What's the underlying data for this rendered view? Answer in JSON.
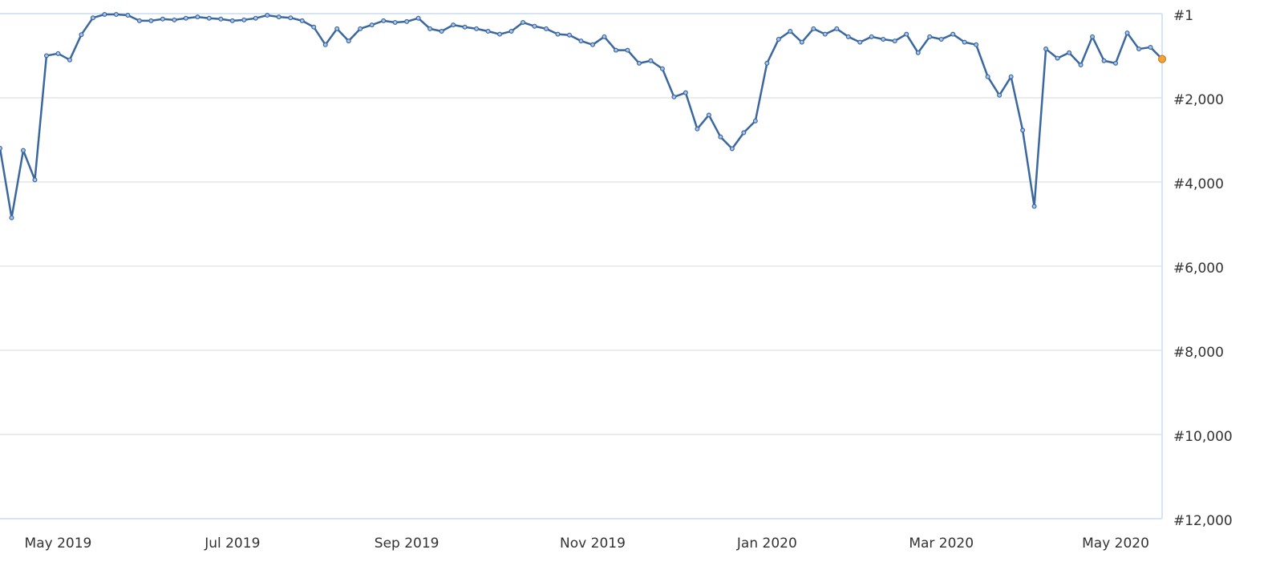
{
  "chart_data": {
    "type": "line",
    "categories": [
      null,
      null,
      null,
      null,
      null,
      "May 2019",
      null,
      null,
      null,
      null,
      null,
      null,
      null,
      null,
      null,
      null,
      null,
      null,
      null,
      null,
      "Jul 2019",
      null,
      null,
      null,
      null,
      null,
      null,
      null,
      null,
      null,
      null,
      null,
      null,
      null,
      null,
      "Sep 2019",
      null,
      null,
      null,
      null,
      null,
      null,
      null,
      null,
      null,
      null,
      null,
      null,
      null,
      null,
      null,
      "Nov 2019",
      null,
      null,
      null,
      null,
      null,
      null,
      null,
      null,
      null,
      null,
      null,
      null,
      null,
      null,
      "Jan 2020",
      null,
      null,
      null,
      null,
      null,
      null,
      null,
      null,
      null,
      null,
      null,
      null,
      null,
      null,
      "Mar 2020",
      null,
      null,
      null,
      null,
      null,
      null,
      null,
      null,
      null,
      null,
      null,
      null,
      null,
      null,
      "May 2020",
      null,
      null,
      null,
      null
    ],
    "series": [
      {
        "color": "#3b679f",
        "marker_color": "#a9c6e8",
        "highlight_color": "#f2a33a",
        "values": [
          3200,
          4850,
          3250,
          3950,
          1000,
          950,
          1100,
          500,
          100,
          20,
          20,
          40,
          170,
          170,
          130,
          150,
          110,
          80,
          110,
          130,
          170,
          150,
          110,
          40,
          80,
          100,
          170,
          320,
          740,
          360,
          650,
          360,
          270,
          170,
          210,
          190,
          110,
          360,
          420,
          270,
          320,
          360,
          420,
          490,
          420,
          210,
          300,
          360,
          490,
          510,
          650,
          740,
          550,
          870,
          870,
          1180,
          1120,
          1310,
          1980,
          1880,
          2740,
          2410,
          2930,
          3210,
          2830,
          2550,
          1180,
          610,
          420,
          680,
          360,
          490,
          360,
          550,
          680,
          550,
          610,
          650,
          490,
          930,
          550,
          610,
          490,
          680,
          740,
          1500,
          1940,
          1500,
          2770,
          4580,
          840,
          1060,
          930,
          1220,
          550,
          1120,
          1180,
          460,
          840,
          800,
          1080
        ]
      }
    ],
    "ylim": [
      1,
      12000
    ],
    "yaxis_inverted": true,
    "yticks": [
      {
        "value": 1,
        "label": "#1"
      },
      {
        "value": 2000,
        "label": "#2,000"
      },
      {
        "value": 4000,
        "label": "#4,000"
      },
      {
        "value": 6000,
        "label": "#6,000"
      },
      {
        "value": 8000,
        "label": "#8,000"
      },
      {
        "value": 10000,
        "label": "#10,000"
      },
      {
        "value": 12000,
        "label": "#12,000"
      }
    ],
    "grid": true
  }
}
